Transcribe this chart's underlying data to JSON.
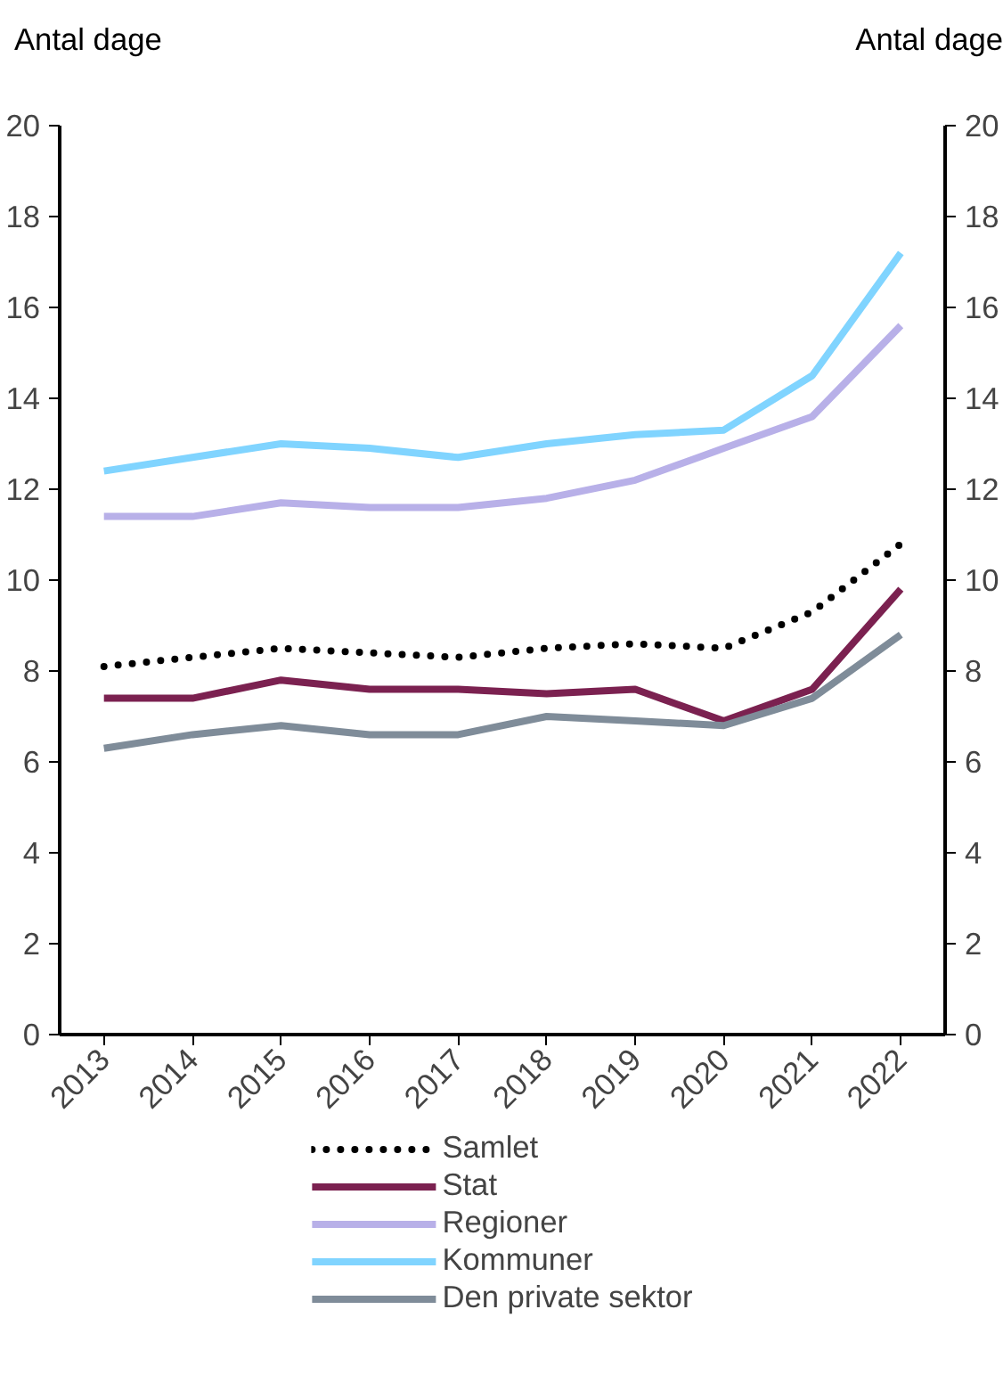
{
  "chart_data": {
    "type": "line",
    "ylabel": "Antal dage",
    "y2label": "Antal dage",
    "categories": [
      "2013",
      "2014",
      "2015",
      "2016",
      "2017",
      "2018",
      "2019",
      "2020",
      "2021",
      "2022"
    ],
    "ylim": [
      0,
      20
    ],
    "yticks": [
      0,
      2,
      4,
      6,
      8,
      10,
      12,
      14,
      16,
      18,
      20
    ],
    "y2lim": [
      0,
      20
    ],
    "y2ticks": [
      0,
      2,
      4,
      6,
      8,
      10,
      12,
      14,
      16,
      18,
      20
    ],
    "grid": false,
    "legend": "bottom",
    "line_style": "solid",
    "series": [
      {
        "name": "Samlet",
        "color": "#000000",
        "line_style": "dotted",
        "values": [
          8.1,
          8.3,
          8.5,
          8.4,
          8.3,
          8.5,
          8.6,
          8.5,
          9.3,
          10.8
        ]
      },
      {
        "name": "Stat",
        "color": "#7b2150",
        "values": [
          7.4,
          7.4,
          7.8,
          7.6,
          7.6,
          7.5,
          7.6,
          6.9,
          7.6,
          9.8
        ]
      },
      {
        "name": "Regioner",
        "color": "#b8b0e8",
        "values": [
          11.4,
          11.4,
          11.7,
          11.6,
          11.6,
          11.8,
          12.2,
          12.9,
          13.6,
          15.6
        ]
      },
      {
        "name": "Kommuner",
        "color": "#80d4ff",
        "values": [
          12.4,
          12.7,
          13.0,
          12.9,
          12.7,
          13.0,
          13.2,
          13.3,
          14.5,
          17.2
        ]
      },
      {
        "name": "Den private sektor",
        "color": "#7f8c99",
        "values": [
          6.3,
          6.6,
          6.8,
          6.6,
          6.6,
          7.0,
          6.9,
          6.8,
          7.4,
          8.8
        ]
      }
    ]
  }
}
